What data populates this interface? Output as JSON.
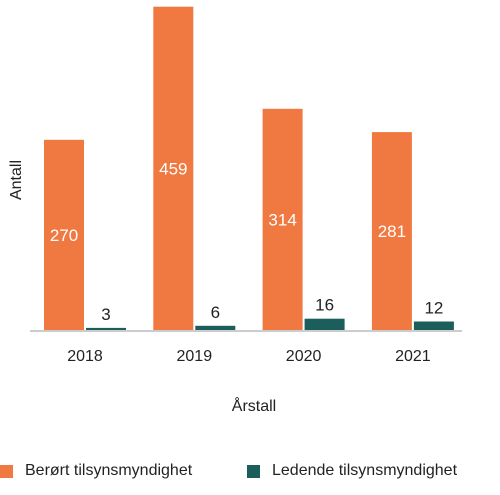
{
  "chart_data": {
    "type": "bar",
    "title": "",
    "xlabel": "Årstall",
    "ylabel": "Antall",
    "categories": [
      "2018",
      "2019",
      "2020",
      "2021"
    ],
    "series": [
      {
        "name": "Berørt tilsynsmyndighet",
        "values": [
          270,
          459,
          314,
          281
        ],
        "color": "#F07941"
      },
      {
        "name": "Ledende tilsynsmyndighet",
        "values": [
          3,
          6,
          16,
          12
        ],
        "color": "#1B5E5B"
      }
    ],
    "ylim": [
      0,
      460
    ],
    "grid": false,
    "legend_position": "bottom"
  }
}
